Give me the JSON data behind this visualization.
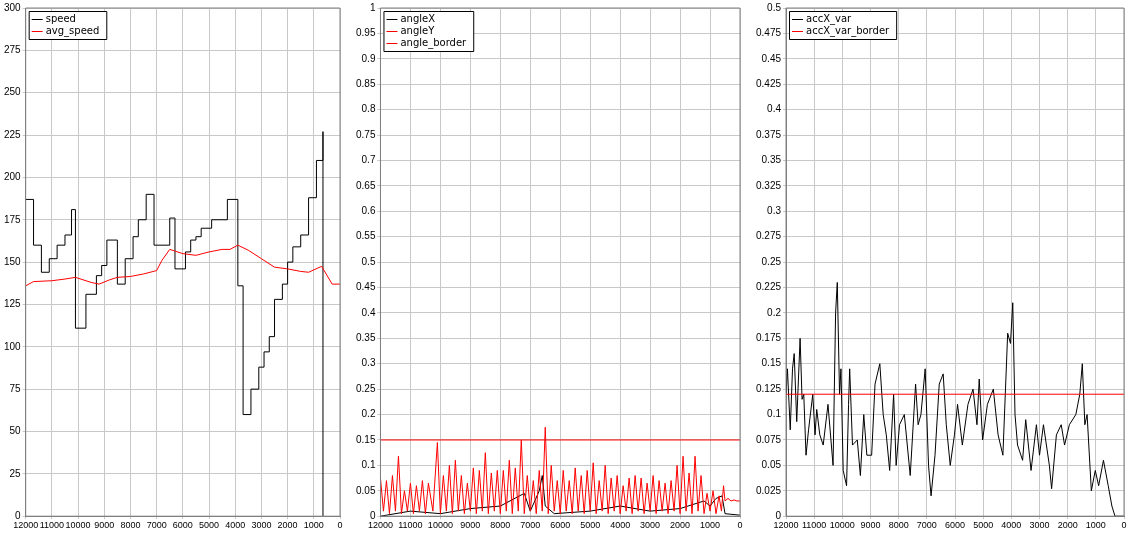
{
  "chart_data": [
    {
      "type": "line",
      "xlim": [
        12000,
        0
      ],
      "xticks": [
        12000,
        11000,
        10000,
        9000,
        8000,
        7000,
        6000,
        5000,
        4000,
        3000,
        2000,
        1000,
        0
      ],
      "ylim": [
        0,
        300
      ],
      "yticks": [
        0,
        25,
        50,
        75,
        100,
        125,
        150,
        175,
        200,
        225,
        250,
        275,
        300
      ],
      "grid": true,
      "legend": "top left",
      "marker": "none",
      "series": [
        {
          "name": "speed",
          "type": "step",
          "color": "#000000",
          "x": [
            12000,
            11700,
            11400,
            11100,
            10800,
            10500,
            10250,
            10100,
            9700,
            9300,
            9100,
            8900,
            8500,
            8200,
            7900,
            7700,
            7400,
            7100,
            6500,
            6300,
            5900,
            5700,
            5500,
            5300,
            4900,
            4300,
            3900,
            3700,
            3400,
            3100,
            2900,
            2700,
            2500,
            2200,
            2000,
            1800,
            1500,
            1200,
            900,
            650,
            650
          ],
          "values": [
            187,
            160,
            144,
            152,
            160,
            166,
            181,
            111,
            131,
            142,
            148,
            163,
            137,
            152,
            165,
            175,
            190,
            160,
            176,
            146,
            156,
            163,
            165,
            170,
            175,
            187,
            136,
            60,
            75,
            88,
            97,
            106,
            128,
            137,
            150,
            159,
            166,
            188,
            210,
            227,
            0
          ]
        },
        {
          "name": "avg_speed",
          "color": "#ff0000",
          "x": [
            12000,
            11700,
            11000,
            10500,
            10100,
            9500,
            9200,
            8800,
            8500,
            8000,
            7500,
            7000,
            6800,
            6500,
            6000,
            5500,
            5000,
            4500,
            4200,
            3900,
            3500,
            3000,
            2500,
            2000,
            1500,
            1200,
            700,
            300,
            0
          ],
          "values": [
            136,
            138.5,
            139,
            140,
            141,
            138,
            137,
            139.5,
            141,
            141.5,
            143,
            145,
            151,
            157.5,
            155,
            154,
            156,
            157.5,
            157.5,
            160,
            157,
            152,
            147,
            146,
            144.5,
            144,
            147.5,
            137,
            137
          ]
        }
      ]
    },
    {
      "type": "line",
      "xlim": [
        12000,
        0
      ],
      "xticks": [
        12000,
        11000,
        10000,
        9000,
        8000,
        7000,
        6000,
        5000,
        4000,
        3000,
        2000,
        1000,
        0
      ],
      "ylim": [
        0,
        1
      ],
      "yticks": [
        0,
        0.05,
        0.1,
        0.15,
        0.2,
        0.25,
        0.3,
        0.35,
        0.4,
        0.45,
        0.5,
        0.55,
        0.6,
        0.65,
        0.7,
        0.75,
        0.8,
        0.85,
        0.9,
        0.95,
        1
      ],
      "grid": true,
      "legend": "top left",
      "marker": "none",
      "series": [
        {
          "name": "angleX",
          "color": "#000000",
          "x": [
            12000,
            11000,
            10000,
            9000,
            8000,
            7200,
            7000,
            6700,
            6600,
            6500,
            6200,
            5000,
            4000,
            3000,
            2000,
            1200,
            1000,
            800,
            600,
            500,
            0
          ],
          "values": [
            0,
            0.01,
            0.005,
            0.015,
            0.02,
            0.045,
            0.01,
            0.05,
            0.08,
            0.02,
            0.005,
            0.01,
            0.02,
            0.01,
            0.015,
            0.03,
            0.02,
            0.035,
            0.04,
            0.005,
            0.002
          ]
        },
        {
          "name": "angleY",
          "color": "#ff0000",
          "x": [
            12000,
            11900,
            11800,
            11700,
            11600,
            11500,
            11400,
            11300,
            11200,
            11100,
            11000,
            10900,
            10800,
            10700,
            10600,
            10500,
            10400,
            10250,
            10100,
            10000,
            9900,
            9800,
            9700,
            9600,
            9500,
            9400,
            9300,
            9200,
            9100,
            9000,
            8900,
            8800,
            8700,
            8600,
            8500,
            8400,
            8300,
            8200,
            8100,
            8000,
            7900,
            7800,
            7700,
            7600,
            7500,
            7400,
            7300,
            7200,
            7100,
            7000,
            6900,
            6800,
            6700,
            6600,
            6500,
            6400,
            6300,
            6200,
            6100,
            6000,
            5900,
            5800,
            5700,
            5600,
            5500,
            5400,
            5300,
            5200,
            5100,
            5000,
            4900,
            4800,
            4700,
            4600,
            4500,
            4400,
            4300,
            4200,
            4100,
            4000,
            3900,
            3800,
            3700,
            3600,
            3500,
            3400,
            3300,
            3200,
            3100,
            3000,
            2900,
            2800,
            2700,
            2600,
            2500,
            2400,
            2300,
            2200,
            2100,
            2000,
            1900,
            1800,
            1700,
            1600,
            1500,
            1400,
            1300,
            1200,
            1100,
            1000,
            900,
            800,
            700,
            620,
            550,
            500,
            400,
            300,
            200,
            100,
            0
          ],
          "values": [
            0.075,
            0.01,
            0.07,
            0.005,
            0.08,
            0.01,
            0.118,
            0.005,
            0.05,
            0.01,
            0.065,
            0.005,
            0.06,
            0.01,
            0.07,
            0.005,
            0.065,
            0.01,
            0.145,
            0.005,
            0.08,
            0.01,
            0.1,
            0.005,
            0.11,
            0.01,
            0.08,
            0.005,
            0.065,
            0.01,
            0.095,
            0.005,
            0.09,
            0.01,
            0.125,
            0.005,
            0.085,
            0.01,
            0.09,
            0.005,
            0.09,
            0.01,
            0.11,
            0.005,
            0.095,
            0.01,
            0.15,
            0.005,
            0.08,
            0.01,
            0.07,
            0.005,
            0.09,
            0.01,
            0.175,
            0.005,
            0.1,
            0.01,
            0.07,
            0.005,
            0.09,
            0.01,
            0.07,
            0.005,
            0.095,
            0.01,
            0.08,
            0.005,
            0.09,
            0.01,
            0.105,
            0.005,
            0.07,
            0.01,
            0.1,
            0.005,
            0.075,
            0.01,
            0.08,
            0.005,
            0.06,
            0.01,
            0.075,
            0.005,
            0.08,
            0.01,
            0.075,
            0.005,
            0.065,
            0.01,
            0.08,
            0.005,
            0.07,
            0.01,
            0.065,
            0.005,
            0.07,
            0.01,
            0.1,
            0.005,
            0.118,
            0.01,
            0.085,
            0.005,
            0.118,
            0.01,
            0.08,
            0.005,
            0.045,
            0.01,
            0.05,
            0.005,
            0.04,
            0.01,
            0.06,
            0.03,
            0.035,
            0.03,
            0.032,
            0.03,
            0.03
          ]
        },
        {
          "name": "angle_border",
          "color": "#ff0000",
          "x": [
            12000,
            0
          ],
          "values": [
            0.15,
            0.15
          ]
        }
      ]
    },
    {
      "type": "line",
      "xlim": [
        12000,
        0
      ],
      "xticks": [
        12000,
        11000,
        10000,
        9000,
        8000,
        7000,
        6000,
        5000,
        4000,
        3000,
        2000,
        1000,
        0
      ],
      "ylim": [
        0,
        0.5
      ],
      "yticks": [
        0,
        0.025,
        0.05,
        0.075,
        0.1,
        0.125,
        0.15,
        0.175,
        0.2,
        0.225,
        0.25,
        0.275,
        0.3,
        0.325,
        0.35,
        0.375,
        0.4,
        0.425,
        0.45,
        0.475,
        0.5
      ],
      "grid": true,
      "legend": "top left",
      "marker": "none",
      "series": [
        {
          "name": "accX_var",
          "color": "#000000",
          "x": [
            12000,
            11950,
            11850,
            11770,
            11710,
            11620,
            11500,
            11430,
            11370,
            11290,
            11200,
            11050,
            10970,
            10910,
            10800,
            10680,
            10510,
            10330,
            10240,
            10180,
            10100,
            10050,
            9970,
            9850,
            9780,
            9740,
            9640,
            9470,
            9360,
            9240,
            9130,
            8960,
            8840,
            8670,
            8550,
            8440,
            8320,
            8180,
            8090,
            7970,
            7800,
            7590,
            7400,
            7310,
            7210,
            7060,
            6940,
            6850,
            6710,
            6560,
            6420,
            6310,
            6170,
            6020,
            5910,
            5740,
            5540,
            5360,
            5220,
            5140,
            5020,
            4850,
            4640,
            4470,
            4300,
            4130,
            4030,
            3950,
            3870,
            3780,
            3600,
            3490,
            3300,
            3110,
            3000,
            2860,
            2650,
            2570,
            2400,
            2230,
            2110,
            1940,
            1710,
            1570,
            1480,
            1390,
            1310,
            1250,
            1160,
            1020,
            900,
            730,
            560,
            430,
            320,
            0
          ],
          "values": [
            0.12,
            0.145,
            0.085,
            0.145,
            0.16,
            0.093,
            0.175,
            0.115,
            0.12,
            0.06,
            0.085,
            0.12,
            0.08,
            0.105,
            0.08,
            0.07,
            0.11,
            0.05,
            0.2,
            0.23,
            0.12,
            0.145,
            0.045,
            0.03,
            0.11,
            0.145,
            0.07,
            0.075,
            0.04,
            0.1,
            0.06,
            0.06,
            0.13,
            0.15,
            0.1,
            0.08,
            0.045,
            0.12,
            0.05,
            0.09,
            0.1,
            0.04,
            0.13,
            0.09,
            0.1,
            0.145,
            0.05,
            0.02,
            0.06,
            0.13,
            0.14,
            0.09,
            0.05,
            0.08,
            0.11,
            0.07,
            0.11,
            0.125,
            0.09,
            0.135,
            0.075,
            0.11,
            0.125,
            0.08,
            0.06,
            0.18,
            0.17,
            0.21,
            0.1,
            0.07,
            0.055,
            0.095,
            0.045,
            0.09,
            0.06,
            0.09,
            0.05,
            0.027,
            0.08,
            0.09,
            0.07,
            0.09,
            0.1,
            0.12,
            0.15,
            0.09,
            0.1,
            0.07,
            0.025,
            0.045,
            0.03,
            0.055,
            0.03,
            0.01,
            0,
            0
          ]
        },
        {
          "name": "accX_var_border",
          "color": "#ff0000",
          "x": [
            12000,
            0
          ],
          "values": [
            0.12,
            0.12
          ]
        }
      ]
    }
  ]
}
